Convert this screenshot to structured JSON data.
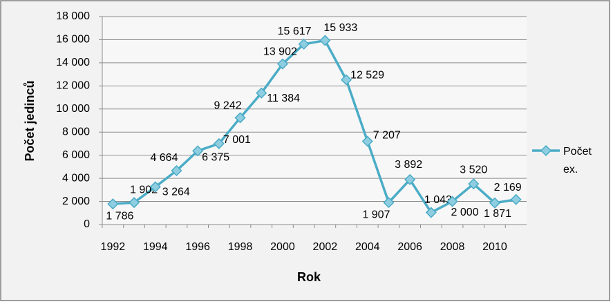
{
  "chart_data": {
    "type": "line",
    "x_label": "Rok",
    "y_label": "Počet jedinců",
    "x": [
      1992,
      1993,
      1994,
      1995,
      1996,
      1997,
      1998,
      1999,
      2000,
      2001,
      2002,
      2003,
      2004,
      2005,
      2006,
      2007,
      2008,
      2009,
      2010,
      2011
    ],
    "xlim": [
      1991.5,
      2011.5
    ],
    "xticks": [
      1992,
      1994,
      1996,
      1998,
      2000,
      2002,
      2004,
      2006,
      2008,
      2010
    ],
    "ylim": [
      0,
      18000
    ],
    "yticks": [
      0,
      {
        "value": 2000,
        "label": "2 000"
      },
      {
        "value": 4000,
        "label": "4 000"
      },
      {
        "value": 6000,
        "label": "6 000"
      },
      {
        "value": 8000,
        "label": "8 000"
      },
      {
        "value": 10000,
        "label": "10 000"
      },
      {
        "value": 12000,
        "label": "12 000"
      },
      {
        "value": 14000,
        "label": "14 000"
      },
      {
        "value": 16000,
        "label": "16 000"
      },
      {
        "value": 18000,
        "label": "18 000"
      }
    ],
    "grid": true,
    "legend": "right",
    "series": [
      {
        "name": "Počet ex.",
        "color": "#4bacc6",
        "values": [
          1786,
          1902,
          3264,
          4664,
          6375,
          7001,
          9242,
          11384,
          13902,
          15617,
          15933,
          12529,
          7207,
          1907,
          3892,
          1043,
          2000,
          3520,
          1871,
          2169
        ],
        "value_labels": [
          "1 786",
          "1 902",
          "3 264",
          "4 664",
          "6 375",
          "7 001",
          "9 242",
          "11 384",
          "13 902",
          "15 617",
          "15 933",
          "12 529",
          "7 207",
          "1 907",
          "3 892",
          "1 043",
          "2 000",
          "3 520",
          "1 871",
          "2 169"
        ]
      }
    ]
  }
}
